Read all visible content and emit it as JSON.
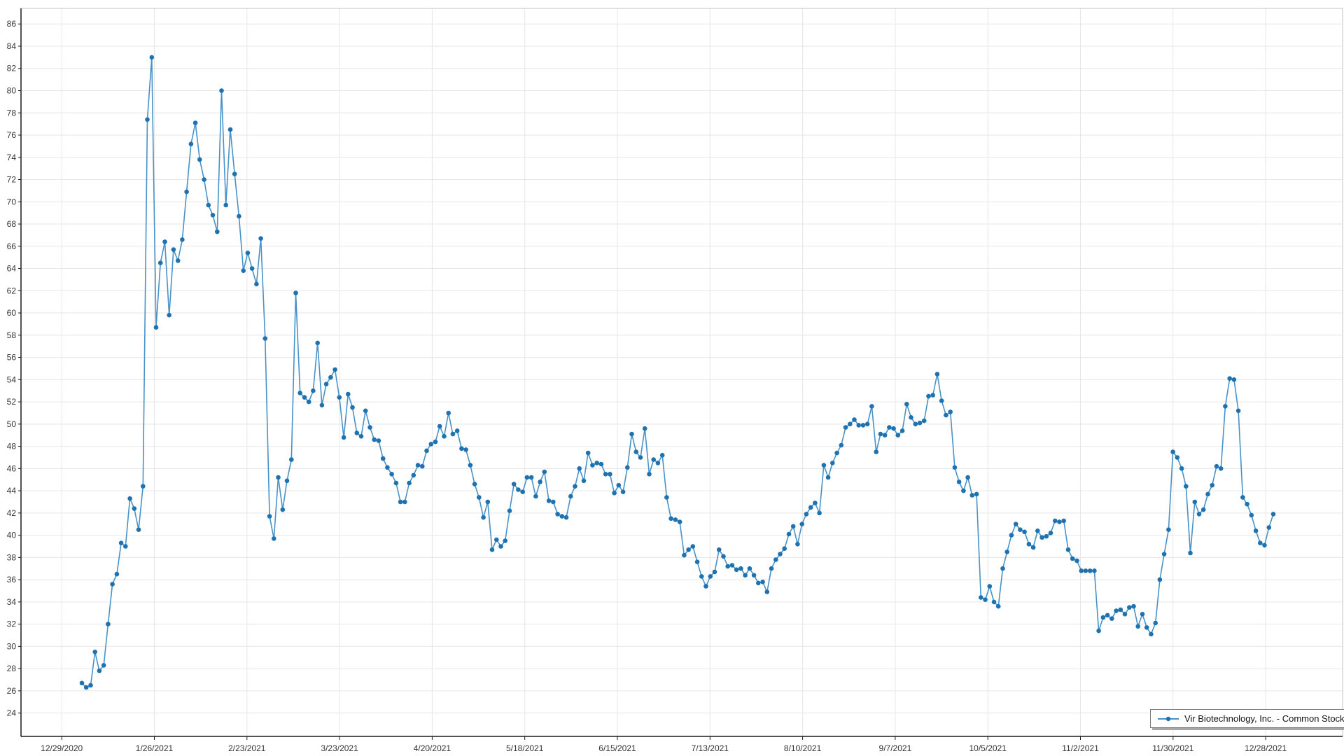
{
  "chart_data": {
    "type": "line",
    "title": "",
    "grid": true,
    "legend_position": "bottom-right",
    "ylim": [
      21.9,
      87.4
    ],
    "y_tick_labels": [
      86,
      84,
      82,
      80,
      78,
      76,
      74,
      72,
      70,
      68,
      66,
      64,
      62,
      60,
      58,
      56,
      54,
      52,
      50,
      48,
      46,
      44,
      42,
      40,
      38,
      36,
      34,
      32,
      30,
      28,
      26,
      24
    ],
    "x_tick_labels": [
      "12/29/2020",
      "1/26/2021",
      "2/23/2021",
      "3/23/2021",
      "4/20/2021",
      "5/18/2021",
      "6/15/2021",
      "7/13/2021",
      "8/10/2021",
      "9/7/2021",
      "10/5/2021",
      "11/2/2021",
      "11/30/2021",
      "12/28/2021"
    ],
    "series": [
      {
        "name": "Vir Biotechnology, Inc. - Common Stock",
        "values": [
          26.7,
          26.3,
          26.5,
          29.5,
          27.8,
          28.3,
          32.0,
          35.6,
          36.5,
          39.3,
          39.0,
          43.3,
          42.4,
          40.5,
          44.4,
          77.4,
          83.0,
          58.7,
          64.5,
          66.4,
          59.8,
          65.7,
          64.7,
          66.6,
          70.9,
          75.2,
          77.1,
          73.8,
          72.0,
          69.7,
          68.8,
          67.3,
          80.0,
          69.7,
          76.5,
          72.5,
          68.7,
          63.8,
          65.4,
          64.0,
          62.6,
          66.7,
          57.7,
          41.7,
          39.7,
          45.2,
          42.3,
          44.9,
          46.8,
          61.8,
          52.8,
          52.4,
          52.0,
          53.0,
          57.3,
          51.7,
          53.6,
          54.2,
          54.9,
          52.4,
          48.8,
          52.7,
          51.5,
          49.2,
          48.9,
          51.2,
          49.7,
          48.6,
          48.5,
          46.9,
          46.1,
          45.5,
          44.7,
          43.0,
          43.0,
          44.7,
          45.4,
          46.3,
          46.2,
          47.6,
          48.2,
          48.4,
          49.8,
          48.9,
          51.0,
          49.1,
          49.4,
          47.8,
          47.7,
          46.3,
          44.6,
          43.4,
          41.6,
          43.0,
          38.7,
          39.6,
          39.0,
          39.5,
          42.2,
          44.6,
          44.1,
          43.9,
          45.2,
          45.2,
          43.5,
          44.8,
          45.7,
          43.1,
          43.0,
          41.9,
          41.7,
          41.6,
          43.5,
          44.4,
          46.0,
          44.9,
          47.4,
          46.3,
          46.5,
          46.4,
          45.5,
          45.5,
          43.8,
          44.5,
          43.9,
          46.1,
          49.1,
          47.5,
          47.0,
          49.6,
          45.5,
          46.8,
          46.5,
          47.2,
          43.4,
          41.5,
          41.4,
          41.2,
          38.2,
          38.7,
          39.0,
          37.6,
          36.3,
          35.4,
          36.3,
          36.7,
          38.7,
          38.1,
          37.2,
          37.3,
          36.9,
          37.0,
          36.4,
          37.0,
          36.4,
          35.7,
          35.8,
          34.9,
          37.0,
          37.8,
          38.3,
          38.8,
          40.1,
          40.8,
          39.2,
          41.0,
          41.9,
          42.5,
          42.9,
          42.0,
          46.3,
          45.2,
          46.5,
          47.4,
          48.1,
          49.7,
          50.0,
          50.4,
          49.9,
          49.9,
          50.0,
          51.6,
          47.5,
          49.1,
          49.0,
          49.7,
          49.6,
          49.0,
          49.4,
          51.8,
          50.6,
          50.0,
          50.1,
          50.3,
          52.5,
          52.6,
          54.5,
          52.1,
          50.8,
          51.1,
          46.1,
          44.8,
          44.0,
          45.2,
          43.6,
          43.7,
          34.4,
          34.2,
          35.4,
          34.0,
          33.6,
          37.0,
          38.5,
          40.0,
          41.0,
          40.5,
          40.3,
          39.2,
          38.9,
          40.4,
          39.8,
          39.9,
          40.2,
          41.3,
          41.2,
          41.3,
          38.7,
          37.9,
          37.7,
          36.8,
          36.8,
          36.8,
          36.8,
          31.4,
          32.6,
          32.8,
          32.5,
          33.2,
          33.3,
          32.9,
          33.5,
          33.6,
          31.8,
          32.9,
          31.7,
          31.1,
          32.1,
          36.0,
          38.3,
          40.5,
          47.5,
          47.0,
          46.0,
          44.4,
          38.4,
          43.0,
          41.9,
          42.3,
          43.7,
          44.5,
          46.2,
          46.0,
          51.6,
          54.1,
          54.0,
          51.2,
          43.4,
          42.8,
          41.8,
          40.4,
          39.3,
          39.1,
          40.7,
          41.9
        ]
      }
    ]
  },
  "colors": {
    "line": "#4792c8",
    "marker": "#1f72b0",
    "grid": "#e6e6e6",
    "plot_border": "#c3c3c3",
    "axis": "#1a1a1a",
    "tick_text": "#333333",
    "legend_border": "#7a7a7a",
    "legend_shadow": "#a6a6a6",
    "background": "#ffffff"
  }
}
